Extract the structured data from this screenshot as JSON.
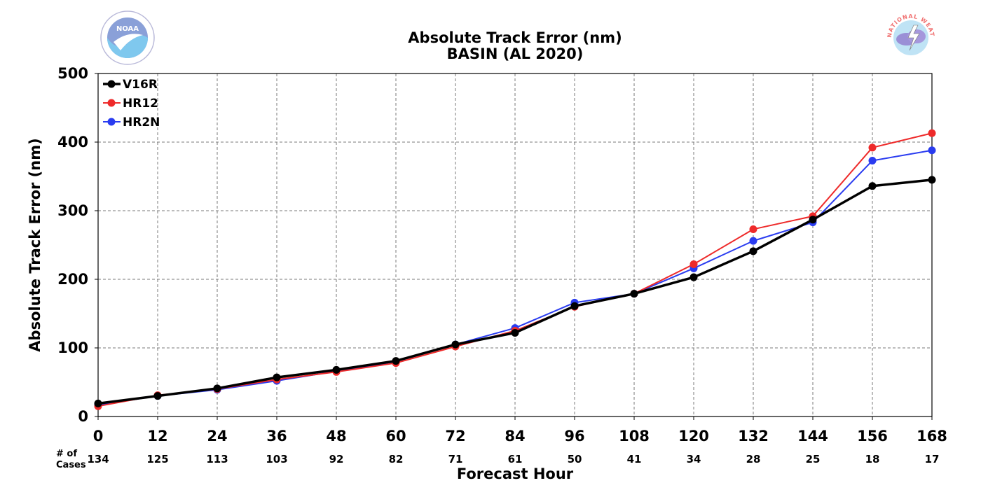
{
  "chart_data": {
    "type": "line",
    "title": "Absolute Track Error (nm)",
    "subtitle": "BASIN (AL 2020)",
    "xlabel": "Forecast Hour",
    "ylabel": "Absolute Track Error (nm)",
    "x": [
      0,
      12,
      24,
      36,
      48,
      60,
      72,
      84,
      96,
      108,
      120,
      132,
      144,
      156,
      168
    ],
    "xlim": [
      0,
      168
    ],
    "ylim": [
      0,
      500
    ],
    "yticks": [
      0,
      100,
      200,
      300,
      400,
      500
    ],
    "grid": true,
    "legend_position": "top-left",
    "cases_label": "# of Cases",
    "cases": [
      134,
      125,
      113,
      103,
      92,
      82,
      71,
      61,
      50,
      41,
      34,
      28,
      25,
      18,
      17
    ],
    "series": [
      {
        "name": "V16R",
        "color": "#000000",
        "values": [
          19,
          30,
          41,
          57,
          68,
          81,
          105,
          122,
          161,
          179,
          203,
          241,
          287,
          336,
          345
        ]
      },
      {
        "name": "HR12",
        "color": "#ee2a2a",
        "values": [
          15,
          31,
          40,
          54,
          65,
          78,
          102,
          125,
          160,
          179,
          222,
          273,
          292,
          392,
          413
        ]
      },
      {
        "name": "HR2N",
        "color": "#2a3cf0",
        "values": [
          17,
          30,
          39,
          52,
          66,
          80,
          105,
          129,
          166,
          179,
          216,
          256,
          283,
          373,
          388
        ]
      }
    ]
  },
  "logos": {
    "left": {
      "icon": "noaa-logo",
      "text": "NOAA"
    },
    "right": {
      "icon": "nws-logo",
      "text": "NATIONAL WEATHER SERVICE"
    }
  }
}
